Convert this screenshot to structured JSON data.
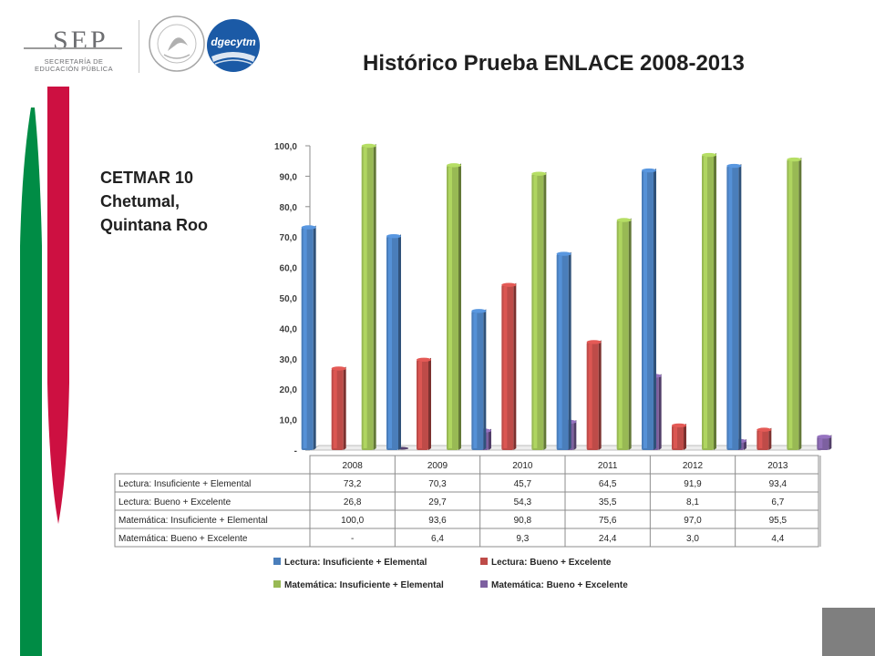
{
  "logos": {
    "sep_word": "SEP",
    "sep_line1": "SECRETARÍA DE",
    "sep_line2": "EDUCACIÓN PÚBLICA",
    "seal_text": "ESTADOS UNIDOS MEXICANOS",
    "dgecytm": "dgecytm"
  },
  "header": {
    "title": "Histórico Prueba ENLACE 2008-2013",
    "subtitle_lines": [
      "CETMAR 10",
      "Chetumal,",
      "Quintana Roo"
    ]
  },
  "chart_data": {
    "type": "bar",
    "categories": [
      "2008",
      "2009",
      "2010",
      "2011",
      "2012",
      "2013"
    ],
    "series": [
      {
        "name": "Lectura: Insuficiente + Elemental",
        "values": [
          73.2,
          70.3,
          45.7,
          64.5,
          91.9,
          93.4
        ],
        "labels": [
          "73,2",
          "70,3",
          "45,7",
          "64,5",
          "91,9",
          "93,4"
        ],
        "color": "#4a7ebb"
      },
      {
        "name": "Lectura: Bueno + Excelente",
        "values": [
          26.8,
          29.7,
          54.3,
          35.5,
          8.1,
          6.7
        ],
        "labels": [
          "26,8",
          "29,7",
          "54,3",
          "35,5",
          "8,1",
          "6,7"
        ],
        "color": "#be4b48"
      },
      {
        "name": "Matemática: Insuficiente + Elemental",
        "values": [
          100.0,
          93.6,
          90.8,
          75.6,
          97.0,
          95.5
        ],
        "labels": [
          "100,0",
          "93,6",
          "90,8",
          "75,6",
          "97,0",
          "95,5"
        ],
        "color": "#98b954"
      },
      {
        "name": "Matemática: Bueno + Excelente",
        "values": [
          0,
          6.4,
          9.3,
          24.4,
          3.0,
          4.4
        ],
        "labels": [
          "-",
          "6,4",
          "9,3",
          "24,4",
          "3,0",
          "4,4"
        ],
        "color": "#7d60a0"
      }
    ],
    "ylim": [
      0,
      100
    ],
    "yticks": [
      "-",
      "10,0",
      "20,0",
      "30,0",
      "40,0",
      "50,0",
      "60,0",
      "70,0",
      "80,0",
      "90,0",
      "100,0"
    ],
    "legend": "bottom",
    "data_table": true,
    "grid": false
  },
  "colors": {
    "stripe_green": "#008c45",
    "stripe_red": "#cd1041",
    "corner_gray": "#7f7f7f",
    "seal_gray": "#a6a6a6",
    "dgecytm_blue": "#1b5aa6"
  }
}
